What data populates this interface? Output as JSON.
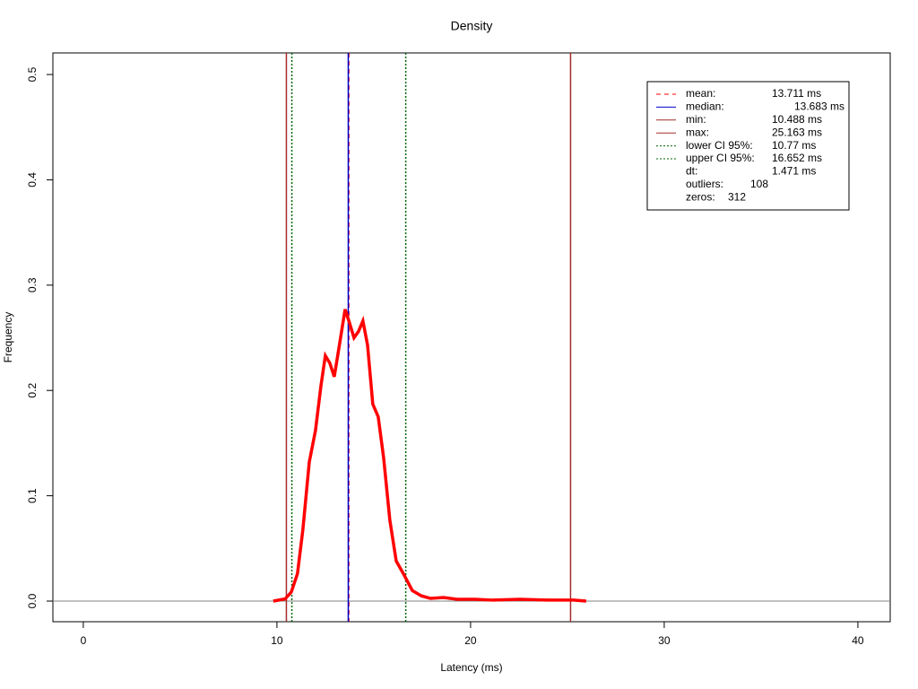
{
  "chart_data": {
    "type": "line",
    "title": "Density",
    "x_label": "Latency (ms)",
    "y_label": "Frequency",
    "xlim": [
      -1.57,
      41.67
    ],
    "ylim": [
      -0.0196,
      0.5205
    ],
    "xticks": [
      0,
      10,
      20,
      30,
      40
    ],
    "yticks": [
      {
        "value": 0,
        "label": "0.0"
      },
      {
        "value": 0.1,
        "label": "0.1"
      },
      {
        "value": 0.2,
        "label": "0.2"
      },
      {
        "value": 0.3,
        "label": "0.3"
      },
      {
        "value": 0.4,
        "label": "0.4"
      },
      {
        "value": 0.5,
        "label": "0.5"
      }
    ],
    "baseline": {
      "value": 0,
      "color": "#808080"
    },
    "series": [
      {
        "color": "#ff0000",
        "x": [
          9.81,
          10.42,
          10.74,
          11.06,
          11.34,
          11.67,
          11.99,
          12.27,
          12.5,
          12.73,
          12.96,
          13.19,
          13.52,
          13.75,
          13.98,
          14.21,
          14.44,
          14.68,
          14.95,
          15.23,
          15.51,
          15.83,
          16.16,
          16.53,
          16.99,
          17.45,
          17.92,
          18.61,
          19.31,
          20.23,
          21.16,
          22.55,
          23.94,
          25.32,
          25.97
        ],
        "values": [
          0,
          0.002,
          0.0085,
          0.026,
          0.068,
          0.132,
          0.162,
          0.204,
          0.233,
          0.226,
          0.213,
          0.239,
          0.277,
          0.264,
          0.25,
          0.256,
          0.266,
          0.243,
          0.187,
          0.175,
          0.136,
          0.077,
          0.038,
          0.026,
          0.01,
          0.005,
          0.0026,
          0.0034,
          0.0017,
          0.0017,
          0.0009,
          0.0017,
          0.0009,
          0.0009,
          0
        ]
      }
    ],
    "vlines": [
      {
        "name": "mean:",
        "value": 13.711,
        "label": "13.711 ms",
        "color": "#ff0000",
        "dash": "5,4"
      },
      {
        "name": "median:",
        "value": 13.683,
        "label": "13.683 ms",
        "color": "#0000cc",
        "dash": ""
      },
      {
        "name": "min:",
        "value": 10.488,
        "label": "10.488 ms",
        "color": "#a52a2a",
        "dash": ""
      },
      {
        "name": "max:",
        "value": 25.163,
        "label": "25.163 ms",
        "color": "#a52a2a",
        "dash": ""
      },
      {
        "name": "lower CI 95%:",
        "value": 10.77,
        "label": "10.77 ms",
        "color": "#006400",
        "dash": "2,2"
      },
      {
        "name": "upper CI 95%:",
        "value": 16.652,
        "label": "16.652 ms",
        "color": "#006400",
        "dash": "2,2"
      }
    ],
    "legend_extra": [
      {
        "name": "dt:",
        "label": "1.471 ms"
      },
      {
        "name": "outliers:",
        "label": "108"
      },
      {
        "name": "zeros:",
        "label": "312"
      }
    ]
  }
}
